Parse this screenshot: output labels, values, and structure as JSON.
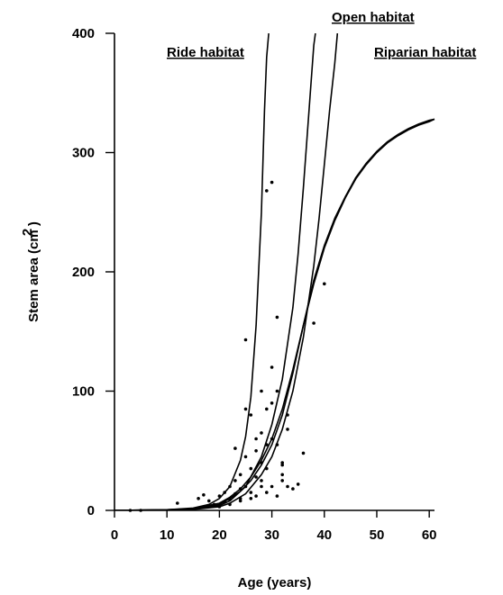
{
  "chart_data": {
    "type": "scatter",
    "title": "",
    "xlabel": "Age (years)",
    "ylabel": "Stem area (cm )",
    "xlim": [
      0,
      61
    ],
    "ylim": [
      0,
      400
    ],
    "x_ticks": [
      0,
      10,
      20,
      30,
      40,
      50,
      60
    ],
    "y_ticks": [
      0,
      100,
      200,
      300,
      400
    ],
    "grid": false,
    "series": [
      {
        "name": "Ride habitat",
        "kind": "curve",
        "x": [
          0,
          10,
          15,
          18,
          20,
          22,
          24,
          25,
          26,
          27,
          28,
          28.6,
          29,
          29.4
        ],
        "y": [
          0,
          0.5,
          2,
          5,
          10,
          20,
          42,
          62,
          95,
          155,
          250,
          335,
          380,
          400
        ]
      },
      {
        "name": "Open habitat",
        "kind": "curve",
        "x": [
          0,
          10,
          15,
          20,
          22,
          25,
          28,
          30,
          32,
          34,
          35,
          36,
          37,
          37.5,
          38,
          38.3
        ],
        "y": [
          0,
          0.3,
          1,
          4,
          8,
          20,
          45,
          72,
          110,
          170,
          215,
          270,
          330,
          360,
          390,
          400
        ]
      },
      {
        "name": "",
        "kind": "curve",
        "x": [
          0,
          10,
          15,
          20,
          22,
          25,
          28,
          30,
          32,
          34,
          36,
          38,
          39,
          40,
          41,
          42,
          42.5
        ],
        "y": [
          0,
          0.2,
          0.8,
          3,
          6,
          14,
          30,
          45,
          68,
          100,
          145,
          205,
          245,
          290,
          335,
          375,
          400
        ]
      },
      {
        "name": "Riparian habitat",
        "kind": "curve",
        "x": [
          0,
          10,
          15,
          20,
          22,
          24,
          26,
          28,
          30,
          32,
          34,
          36,
          38,
          40,
          42,
          44,
          46,
          48,
          50,
          52,
          54,
          56,
          58,
          60,
          61
        ],
        "y": [
          0,
          0.5,
          1.5,
          6,
          11,
          18,
          28,
          42,
          60,
          85,
          118,
          155,
          190,
          220,
          243,
          262,
          278,
          290,
          300,
          308,
          314,
          319,
          323,
          326,
          328
        ]
      },
      {
        "name": "",
        "kind": "curve",
        "x": [
          0,
          10,
          15,
          20,
          22,
          24,
          26,
          28,
          30,
          32,
          34,
          36,
          38,
          40,
          42,
          44,
          46,
          48,
          50,
          52,
          54,
          56,
          58,
          60,
          61
        ],
        "y": [
          0,
          0.5,
          1.5,
          5,
          10,
          16,
          25,
          38,
          55,
          80,
          115,
          155,
          193,
          222,
          245,
          263,
          279,
          291,
          301,
          309,
          315,
          320,
          324,
          327,
          328
        ]
      },
      {
        "name": "",
        "kind": "points",
        "x": [
          3,
          5,
          12,
          16,
          17,
          18,
          19,
          20,
          20,
          21,
          21,
          22,
          22,
          22,
          23,
          23,
          23,
          24,
          24,
          24,
          24,
          25,
          25,
          25,
          25,
          26,
          26,
          26,
          26,
          27,
          27,
          27,
          27,
          28,
          28,
          28,
          28,
          28,
          29,
          29,
          29,
          29,
          29,
          30,
          30,
          30,
          30,
          30,
          31,
          31,
          31,
          31,
          32,
          32,
          32,
          32,
          33,
          33,
          33,
          34,
          35,
          36,
          38,
          40
        ],
        "y": [
          0,
          0,
          6,
          10,
          13,
          8,
          5,
          12,
          3,
          15,
          7,
          20,
          9,
          5,
          25,
          14,
          52,
          30,
          18,
          10,
          8,
          143,
          85,
          45,
          20,
          80,
          35,
          15,
          10,
          60,
          28,
          12,
          50,
          100,
          65,
          40,
          20,
          25,
          268,
          85,
          55,
          35,
          15,
          275,
          120,
          90,
          60,
          20,
          162,
          100,
          55,
          12,
          38,
          30,
          25,
          40,
          80,
          68,
          20,
          18,
          22,
          48,
          157,
          190
        ]
      }
    ]
  }
}
